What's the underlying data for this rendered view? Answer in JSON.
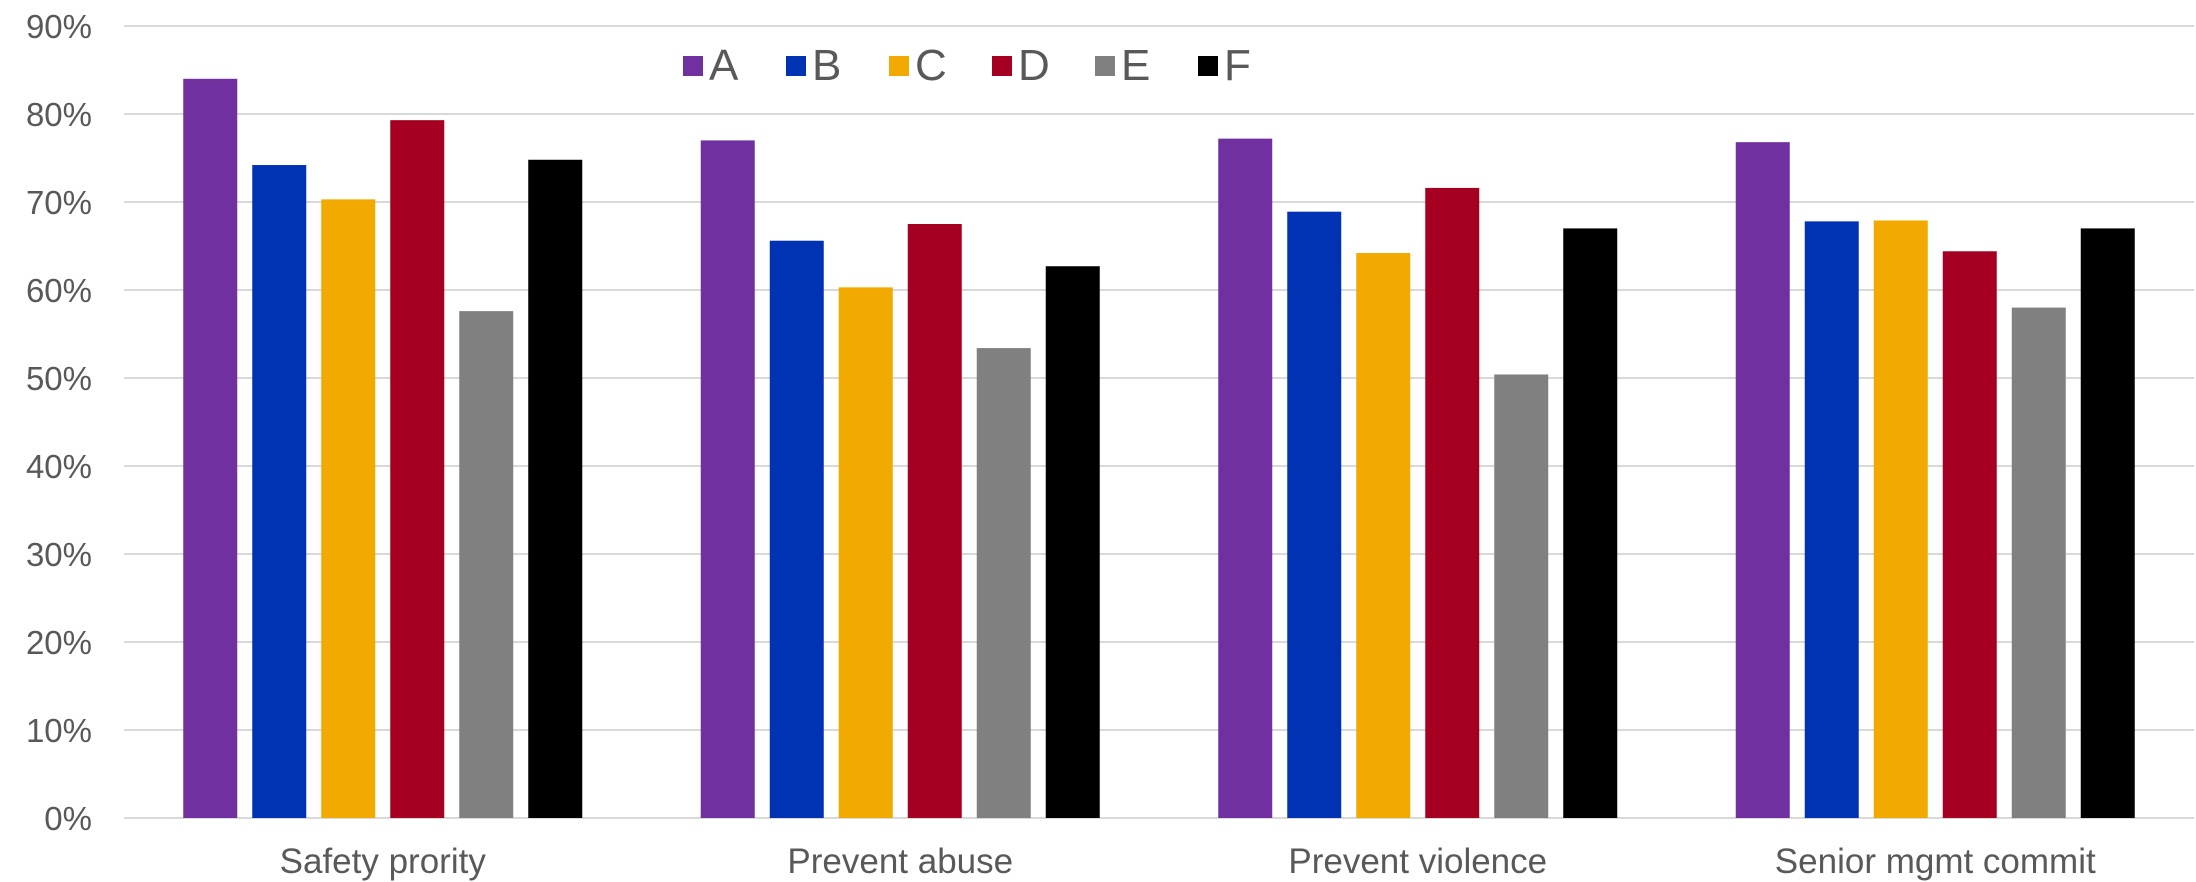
{
  "chart_data": {
    "type": "bar",
    "title": "",
    "xlabel": "",
    "ylabel": "",
    "ylim": [
      0,
      90
    ],
    "yticks": [
      "0%",
      "10%",
      "20%",
      "30%",
      "40%",
      "50%",
      "60%",
      "70%",
      "80%",
      "90%"
    ],
    "grid": true,
    "legend_position": "top",
    "categories": [
      "Safety prority",
      "Prevent abuse",
      "Prevent violence",
      "Senior mgmt commit"
    ],
    "series": [
      {
        "name": "A",
        "color": "#7030a0",
        "values": [
          84,
          77,
          77.2,
          76.8
        ]
      },
      {
        "name": "B",
        "color": "#0033b3",
        "values": [
          74.2,
          65.6,
          68.9,
          67.8
        ]
      },
      {
        "name": "C",
        "color": "#f2a900",
        "values": [
          70.3,
          60.3,
          64.2,
          67.9
        ]
      },
      {
        "name": "D",
        "color": "#a50021",
        "values": [
          79.3,
          67.5,
          71.6,
          64.4
        ]
      },
      {
        "name": "E",
        "color": "#808080",
        "values": [
          57.6,
          53.4,
          50.4,
          58
        ]
      },
      {
        "name": "F",
        "color": "#000000",
        "values": [
          74.8,
          62.7,
          67,
          67
        ]
      }
    ]
  }
}
